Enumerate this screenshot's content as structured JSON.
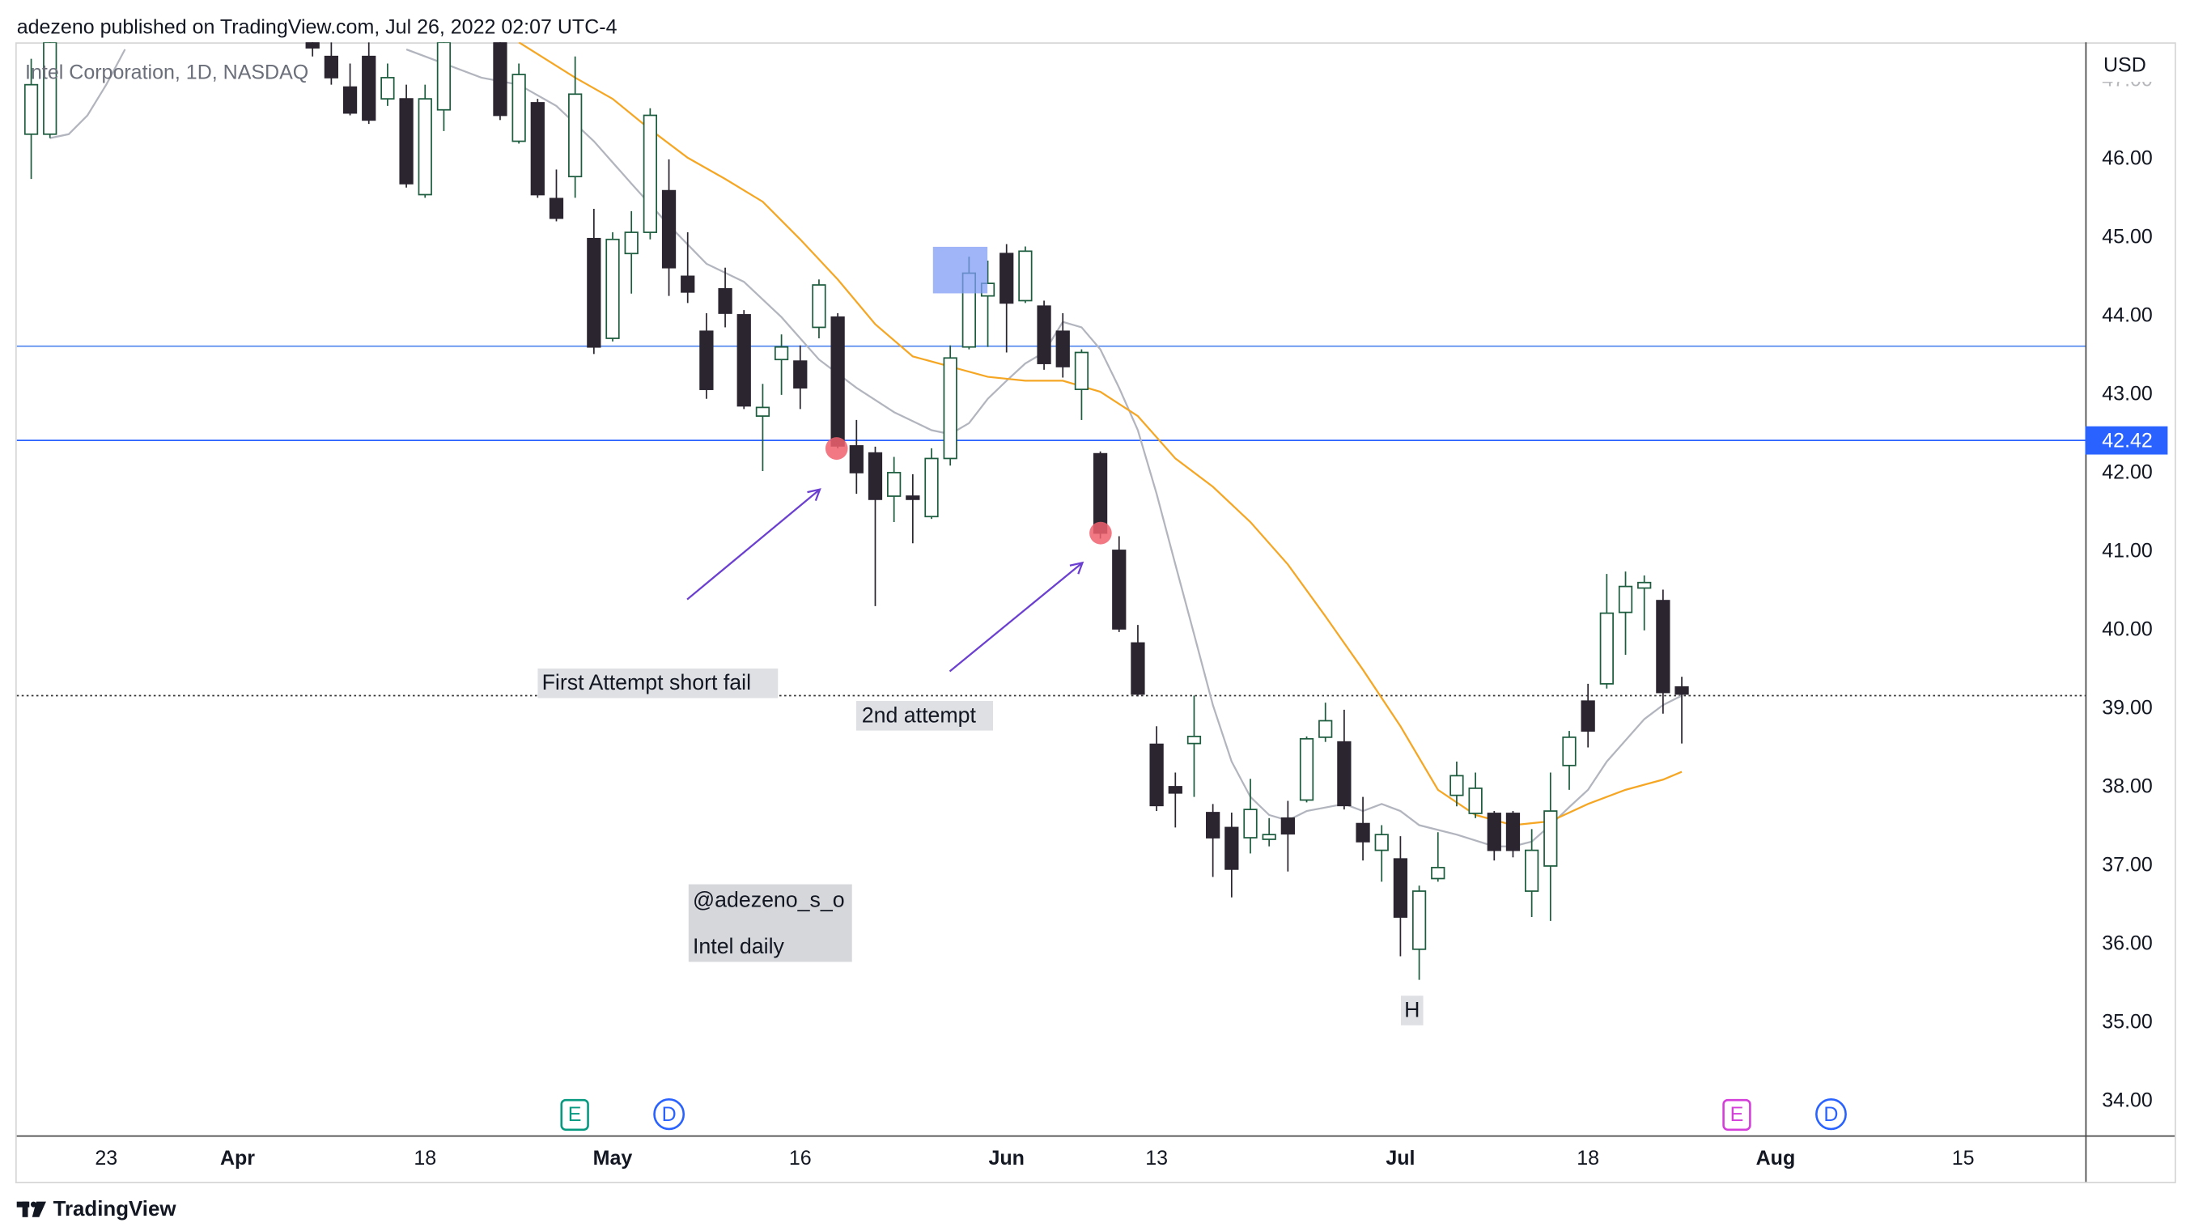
{
  "header": "adezeno published on TradingView.com, Jul 26, 2022 02:07 UTC-4",
  "footer": "TradingView",
  "chart_data": {
    "type": "candlestick",
    "title": "Intel Corporation, 1D, NASDAQ",
    "currency": "USD",
    "x": [
      -4,
      -3,
      11,
      12,
      13,
      14,
      15,
      16,
      17,
      18,
      21,
      22,
      23,
      24,
      25,
      26,
      27,
      28,
      29,
      30,
      31,
      32,
      33,
      34,
      35,
      36,
      37,
      38,
      39,
      40,
      41,
      42,
      43,
      44,
      45,
      46,
      47,
      48,
      49,
      50,
      51,
      52,
      53,
      54,
      55,
      56,
      57,
      58,
      59,
      60,
      61,
      62,
      63,
      64,
      65,
      66,
      67,
      68,
      69,
      70,
      71,
      72,
      73,
      74,
      75,
      76,
      77,
      78,
      79,
      80,
      81,
      82,
      83,
      84
    ],
    "open": [
      46.32,
      46.32,
      47.49,
      47.31,
      46.92,
      47.31,
      46.77,
      46.77,
      45.55,
      46.63,
      47.49,
      46.23,
      46.72,
      45.5,
      45.78,
      44.99,
      43.72,
      44.8,
      45.07,
      45.6,
      44.51,
      43.81,
      44.35,
      44.02,
      42.73,
      43.45,
      43.43,
      43.86,
      43.99,
      42.35,
      42.26,
      41.71,
      41.71,
      41.45,
      42.19,
      43.61,
      44.26,
      44.8,
      44.2,
      44.13,
      43.81,
      43.07,
      42.25,
      41.02,
      39.84,
      38.55,
      38.01,
      38.56,
      37.68,
      37.49,
      37.36,
      37.34,
      37.61,
      37.84,
      38.64,
      38.58,
      37.54,
      37.2,
      37.09,
      35.94,
      36.84,
      37.9,
      37.67,
      37.67,
      37.67,
      36.68,
      37.0,
      38.28,
      39.1,
      39.32,
      40.23,
      40.54,
      40.38,
      39.28
    ],
    "high": [
      47.28,
      47.58,
      47.58,
      47.49,
      47.22,
      47.49,
      47.22,
      46.95,
      46.95,
      47.58,
      47.58,
      47.22,
      46.77,
      45.87,
      47.31,
      45.37,
      45.07,
      45.34,
      46.65,
      46.0,
      45.07,
      44.04,
      44.62,
      44.08,
      43.14,
      43.77,
      43.63,
      44.47,
      44.04,
      42.68,
      42.34,
      42.21,
      41.99,
      42.32,
      43.63,
      44.76,
      44.71,
      44.92,
      44.89,
      44.2,
      44.04,
      43.58,
      42.28,
      41.2,
      40.07,
      38.78,
      38.19,
      39.17,
      37.79,
      37.68,
      38.11,
      37.61,
      37.83,
      38.65,
      39.08,
      38.99,
      37.88,
      37.52,
      37.38,
      36.75,
      37.43,
      38.33,
      38.19,
      37.7,
      37.7,
      37.47,
      38.19,
      38.72,
      39.32,
      40.72,
      40.75,
      40.7,
      40.52,
      39.41
    ],
    "low": [
      45.75,
      46.27,
      47.31,
      46.95,
      46.56,
      46.45,
      46.68,
      45.64,
      45.51,
      46.36,
      46.5,
      46.2,
      45.51,
      45.21,
      45.51,
      43.52,
      43.68,
      44.29,
      44.98,
      44.26,
      44.17,
      42.95,
      43.86,
      42.82,
      42.03,
      43.0,
      42.82,
      43.72,
      42.32,
      41.74,
      40.31,
      41.38,
      41.11,
      41.42,
      42.1,
      43.58,
      43.61,
      43.54,
      44.17,
      43.32,
      43.22,
      42.68,
      41.17,
      39.98,
      39.16,
      37.7,
      37.49,
      37.88,
      36.86,
      36.6,
      37.16,
      37.25,
      36.93,
      37.81,
      38.58,
      37.72,
      37.07,
      36.8,
      35.85,
      35.55,
      36.8,
      37.76,
      37.61,
      37.07,
      37.11,
      36.35,
      36.3,
      37.97,
      38.51,
      39.26,
      39.69,
      40.0,
      38.94,
      38.56
    ],
    "close": [
      46.95,
      47.49,
      47.42,
      47.04,
      46.59,
      46.5,
      47.04,
      45.69,
      46.77,
      47.49,
      46.56,
      47.08,
      45.55,
      45.25,
      46.83,
      43.61,
      44.98,
      45.07,
      46.56,
      44.62,
      44.31,
      43.07,
      44.04,
      42.86,
      42.84,
      43.61,
      43.09,
      44.4,
      42.35,
      42.01,
      41.67,
      42.01,
      41.67,
      42.19,
      43.47,
      44.55,
      44.42,
      44.17,
      44.83,
      43.4,
      43.36,
      43.54,
      41.24,
      40.02,
      39.19,
      37.77,
      37.93,
      38.65,
      37.36,
      36.96,
      37.72,
      37.4,
      37.41,
      38.62,
      38.85,
      37.77,
      37.31,
      37.4,
      36.35,
      36.68,
      36.98,
      38.15,
      37.99,
      37.2,
      37.2,
      37.2,
      37.7,
      38.64,
      38.72,
      40.22,
      40.56,
      40.61,
      39.21,
      39.19
    ],
    "up_color": "#ffffff",
    "up_border": "#1d5c3e",
    "down_color": "#2b2530",
    "overlays": [
      {
        "color": "#b2b5be",
        "x": [
          -3,
          -2,
          -1,
          0,
          1,
          8,
          16,
          18,
          20,
          22,
          24,
          26,
          28,
          30,
          32,
          34,
          36,
          38,
          40,
          42,
          44,
          45,
          46,
          47,
          48,
          49,
          50,
          51,
          52,
          53,
          54,
          55,
          56,
          57,
          58,
          59,
          60,
          61,
          62,
          63,
          64,
          66,
          67,
          68,
          69,
          70,
          72,
          74,
          75,
          76,
          77,
          78,
          79,
          80,
          81,
          82,
          83,
          84
        ],
        "values": [
          46.27,
          46.32,
          46.56,
          46.95,
          47.4,
          null,
          47.4,
          47.22,
          47.04,
          46.95,
          46.68,
          46.23,
          45.69,
          45.16,
          44.67,
          44.44,
          43.99,
          43.45,
          43.09,
          42.78,
          42.55,
          42.5,
          42.64,
          42.95,
          43.18,
          43.4,
          43.54,
          43.93,
          43.86,
          43.58,
          43.09,
          42.55,
          41.74,
          40.84,
          39.95,
          39.05,
          38.33,
          37.88,
          37.65,
          37.58,
          37.7,
          37.79,
          37.7,
          37.79,
          37.7,
          37.52,
          37.4,
          37.25,
          37.25,
          37.31,
          37.52,
          37.75,
          37.97,
          38.33,
          38.6,
          38.87,
          39.05,
          39.17
        ]
      },
      {
        "color": "#f5a623",
        "x": [
          22,
          25,
          27,
          29,
          31,
          33,
          35,
          37,
          39,
          41,
          43,
          45,
          47,
          49,
          51,
          53,
          55,
          57,
          59,
          61,
          63,
          65,
          67,
          69,
          71,
          73,
          75,
          77,
          79,
          81,
          83,
          84
        ],
        "values": [
          47.49,
          47.04,
          46.77,
          46.38,
          46.02,
          45.75,
          45.46,
          44.98,
          44.47,
          43.9,
          43.49,
          43.36,
          43.23,
          43.18,
          43.18,
          43.04,
          42.73,
          42.19,
          41.83,
          41.38,
          40.84,
          40.18,
          39.5,
          38.78,
          37.97,
          37.65,
          37.52,
          37.57,
          37.79,
          37.97,
          38.1,
          38.2
        ]
      }
    ],
    "hlines": [
      {
        "value": 43.62,
        "color": "#5b8def",
        "axis_label": false
      },
      {
        "value": 42.42,
        "color": "#2962ff",
        "axis_label": true
      }
    ],
    "dotted_line": 39.17,
    "annotations": [
      "First Attempt short fail",
      "2nd attempt",
      "@adezeno_s_o",
      "Intel daily",
      "H"
    ],
    "events": [
      "E",
      "D",
      "E",
      "D"
    ],
    "xlim": [
      -4.77,
      105.51
    ],
    "ylim": [
      33.57,
      47.49
    ],
    "xticks": [
      {
        "value": 0,
        "label": "23"
      },
      {
        "value": 7,
        "label": "Apr"
      },
      {
        "value": 17,
        "label": "18"
      },
      {
        "value": 27,
        "label": "May"
      },
      {
        "value": 37,
        "label": "16"
      },
      {
        "value": 48,
        "label": "Jun"
      },
      {
        "value": 56,
        "label": "13"
      },
      {
        "value": 69,
        "label": "Jul"
      },
      {
        "value": 79,
        "label": "18"
      },
      {
        "value": 89,
        "label": "Aug"
      },
      {
        "value": 99,
        "label": "15"
      }
    ],
    "yticks": [
      {
        "value": 34,
        "label": "34.00"
      },
      {
        "value": 35,
        "label": "35.00"
      },
      {
        "value": 36,
        "label": "36.00"
      },
      {
        "value": 37,
        "label": "37.00"
      },
      {
        "value": 38,
        "label": "38.00"
      },
      {
        "value": 39,
        "label": "39.00"
      },
      {
        "value": 40,
        "label": "40.00"
      },
      {
        "value": 41,
        "label": "41.00"
      },
      {
        "value": 42,
        "label": "42.00"
      },
      {
        "value": 43,
        "label": "43.00"
      },
      {
        "value": 44,
        "label": "44.00"
      },
      {
        "value": 45,
        "label": "45.00"
      },
      {
        "value": 46,
        "label": "46.00"
      },
      {
        "value": 47,
        "label": "47.00"
      }
    ],
    "grid": false
  }
}
